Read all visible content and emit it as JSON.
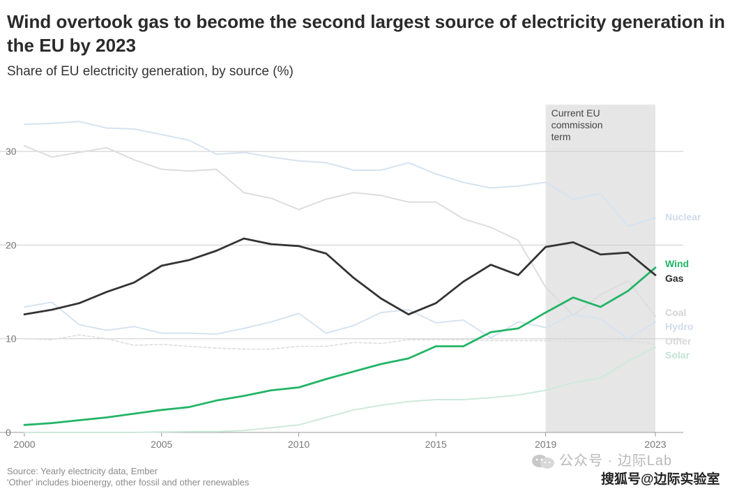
{
  "header": {
    "title": "Wind overtook gas to become the second largest source of electricity generation in the EU by 2023",
    "subtitle": "Share of EU electricity generation, by source (%)"
  },
  "footer": {
    "source_line1": "Source: Yearly electricity data, Ember",
    "source_line2": "'Other' includes bioenergy, other fossil and other renewables"
  },
  "watermark": {
    "text1": "公众号 · 边际Lab",
    "text2": "搜狐号@边际实验室"
  },
  "colors": {
    "wind": "#22b466",
    "gas": "#333333",
    "nuclear": "#d5e3f1",
    "coal": "#dddddd",
    "hydro": "#d6e3f0",
    "other": "#dddddd",
    "solar": "#cdeadb",
    "grid": "#cccccc",
    "shade": "#e6e6e6"
  },
  "chart_data": {
    "type": "line",
    "title": "Wind overtook gas to become the second largest source of electricity generation in the EU by 2023",
    "subtitle": "Share of EU electricity generation, by source (%)",
    "xlabel": "",
    "ylabel": "",
    "xlim": [
      2000,
      2023
    ],
    "ylim": [
      0,
      35
    ],
    "x_ticks": [
      "2000",
      "2005",
      "2010",
      "2015",
      "2019",
      "2023"
    ],
    "y_ticks": [
      "0",
      "10",
      "20",
      "30"
    ],
    "grid": true,
    "annotation": {
      "lines": [
        "Current EU",
        "commission",
        "term"
      ],
      "x_range": [
        2019,
        2023
      ]
    },
    "x": [
      2000,
      2001,
      2002,
      2003,
      2004,
      2005,
      2006,
      2007,
      2008,
      2009,
      2010,
      2011,
      2012,
      2013,
      2014,
      2015,
      2016,
      2017,
      2018,
      2019,
      2020,
      2021,
      2022,
      2023
    ],
    "series": [
      {
        "name": "Nuclear",
        "key": "nuclear",
        "values": [
          32.9,
          33.0,
          33.2,
          32.5,
          32.4,
          31.8,
          31.2,
          29.7,
          29.9,
          29.4,
          29.0,
          28.8,
          28.0,
          28.0,
          28.8,
          27.6,
          26.7,
          26.1,
          26.3,
          26.7,
          24.9,
          25.5,
          22.0,
          22.9
        ]
      },
      {
        "name": "Coal",
        "key": "coal",
        "values": [
          30.6,
          29.4,
          29.9,
          30.4,
          29.1,
          28.1,
          27.9,
          28.1,
          25.6,
          25.0,
          23.8,
          24.9,
          25.6,
          25.3,
          24.6,
          24.6,
          22.8,
          21.9,
          20.5,
          15.5,
          12.5,
          14.7,
          16.2,
          12.4
        ]
      },
      {
        "name": "Hydro",
        "key": "hydro",
        "values": [
          13.4,
          13.9,
          11.5,
          10.9,
          11.3,
          10.6,
          10.6,
          10.5,
          11.1,
          11.8,
          12.7,
          10.6,
          11.4,
          12.8,
          13.1,
          11.7,
          12.0,
          10.1,
          11.8,
          11.2,
          12.6,
          12.1,
          10.0,
          11.8
        ]
      },
      {
        "name": "Other",
        "key": "other",
        "values": [
          10.0,
          9.9,
          10.4,
          10.0,
          9.3,
          9.4,
          9.2,
          9.0,
          8.9,
          8.9,
          9.2,
          9.2,
          9.6,
          9.5,
          9.9,
          9.9,
          9.9,
          9.8,
          9.8,
          9.8,
          9.7,
          9.7,
          9.8,
          9.4
        ]
      },
      {
        "name": "Solar",
        "key": "solar",
        "values": [
          0.0,
          0.0,
          0.0,
          0.0,
          0.0,
          0.05,
          0.1,
          0.1,
          0.2,
          0.5,
          0.8,
          1.6,
          2.4,
          2.9,
          3.3,
          3.5,
          3.5,
          3.7,
          4.0,
          4.5,
          5.3,
          5.8,
          7.6,
          9.1
        ]
      },
      {
        "name": "Wind",
        "key": "wind",
        "values": [
          0.8,
          1.0,
          1.3,
          1.6,
          2.0,
          2.4,
          2.7,
          3.4,
          3.9,
          4.5,
          4.8,
          5.7,
          6.5,
          7.3,
          7.9,
          9.2,
          9.2,
          10.7,
          11.1,
          12.8,
          14.4,
          13.4,
          15.1,
          17.6
        ]
      },
      {
        "name": "Gas",
        "key": "gas",
        "values": [
          12.6,
          13.1,
          13.8,
          15.0,
          16.0,
          17.8,
          18.4,
          19.4,
          20.7,
          20.1,
          19.9,
          19.1,
          16.5,
          14.3,
          12.6,
          13.8,
          16.1,
          17.9,
          16.8,
          19.8,
          20.3,
          19.0,
          19.2,
          16.8
        ]
      }
    ]
  }
}
